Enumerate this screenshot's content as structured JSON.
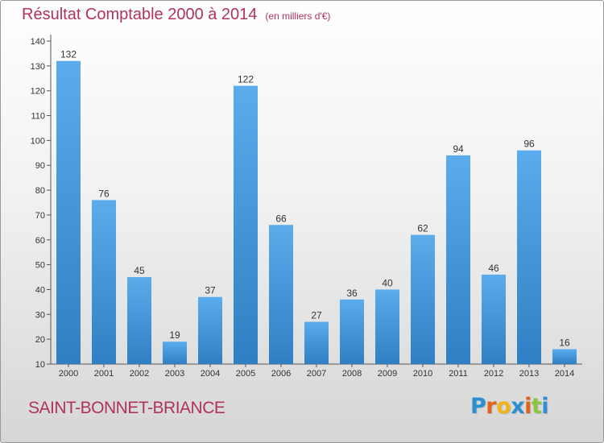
{
  "chart_data": {
    "type": "bar",
    "title": "Résultat Comptable 2000 à 2014",
    "subtitle": "(en milliers d'€)",
    "categories": [
      "2000",
      "2001",
      "2002",
      "2003",
      "2004",
      "2005",
      "2006",
      "2007",
      "2008",
      "2009",
      "2010",
      "2011",
      "2012",
      "2013",
      "2014"
    ],
    "values": [
      132,
      76,
      45,
      19,
      37,
      122,
      66,
      27,
      36,
      40,
      62,
      94,
      46,
      96,
      16
    ],
    "ylim": [
      10,
      140
    ],
    "yticks": [
      10,
      20,
      30,
      40,
      50,
      60,
      70,
      80,
      90,
      100,
      110,
      120,
      130,
      140
    ],
    "xlabel": "",
    "ylabel": "",
    "grid": false,
    "bar_color": "#4a9be0"
  },
  "footer": {
    "commune": "SAINT-BONNET-BRIANCE",
    "logo_letters": [
      "P",
      "r",
      "o",
      "x",
      "i",
      "t",
      "i"
    ],
    "logo_colors": [
      "#2b8fd0",
      "#e2641c",
      "#f2b21a",
      "#2b8fd0",
      "#e2641c",
      "#8cc63f",
      "#2b8fd0"
    ]
  }
}
